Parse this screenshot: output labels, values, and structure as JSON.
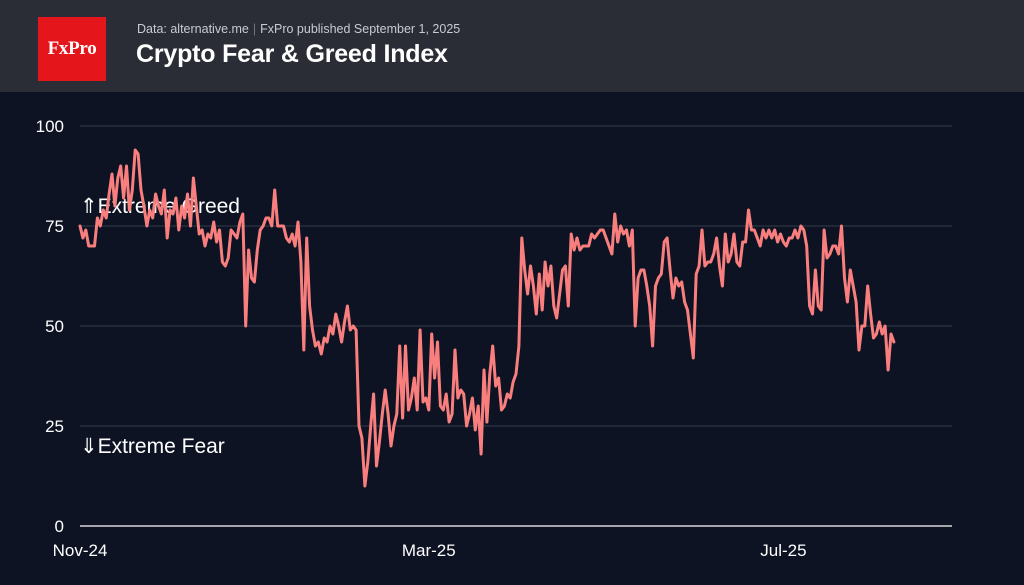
{
  "header": {
    "logo_text": "FxPro",
    "source": "Data: alternative.me",
    "separator": "|",
    "published": "FxPro published September 1, 2025",
    "title": "Crypto Fear & Greed Index"
  },
  "colors": {
    "background": "#0d1322",
    "header_background": "#2a2d35",
    "logo": "#e4161c",
    "line": "#f97f7f",
    "grid": "#343b4c"
  },
  "chart_data": {
    "type": "line",
    "title": "Crypto Fear & Greed Index",
    "xlabel": "",
    "ylabel": "",
    "ylim": [
      0,
      100
    ],
    "xlim": [
      0,
      300
    ],
    "yticks": [
      0,
      25,
      50,
      75,
      100
    ],
    "ytick_labels": [
      "0",
      "25",
      "50",
      "75",
      "100"
    ],
    "xticks": [
      {
        "label": "Nov-24",
        "x": 0
      },
      {
        "label": "Mar-25",
        "x": 120
      },
      {
        "label": "Jul-25",
        "x": 242
      }
    ],
    "grid": true,
    "annotations": [
      {
        "text": "⇑Extreme Greed",
        "y": 80
      },
      {
        "text": "⇓Extreme Fear",
        "y": 20
      }
    ],
    "series": [
      {
        "name": "Fear & Greed Index",
        "points": [
          [
            0,
            75
          ],
          [
            1,
            72
          ],
          [
            2,
            74
          ],
          [
            3,
            70
          ],
          [
            4,
            70
          ],
          [
            5,
            70
          ],
          [
            6,
            77
          ],
          [
            7,
            75
          ],
          [
            8,
            79
          ],
          [
            9,
            77
          ],
          [
            10,
            83
          ],
          [
            11,
            88
          ],
          [
            12,
            80
          ],
          [
            13,
            87
          ],
          [
            14,
            90
          ],
          [
            15,
            82
          ],
          [
            16,
            90
          ],
          [
            17,
            79
          ],
          [
            18,
            84
          ],
          [
            19,
            94
          ],
          [
            20,
            93
          ],
          [
            21,
            84
          ],
          [
            22,
            80
          ],
          [
            23,
            75
          ],
          [
            24,
            79
          ],
          [
            25,
            77
          ],
          [
            26,
            83
          ],
          [
            27,
            80
          ],
          [
            28,
            78
          ],
          [
            29,
            84
          ],
          [
            30,
            72
          ],
          [
            31,
            79
          ],
          [
            32,
            78
          ],
          [
            33,
            82
          ],
          [
            34,
            74
          ],
          [
            35,
            80
          ],
          [
            36,
            77
          ],
          [
            37,
            83
          ],
          [
            38,
            75
          ],
          [
            39,
            87
          ],
          [
            40,
            80
          ],
          [
            41,
            73
          ],
          [
            42,
            74
          ],
          [
            43,
            70
          ],
          [
            44,
            73
          ],
          [
            45,
            72
          ],
          [
            46,
            76
          ],
          [
            47,
            71
          ],
          [
            48,
            74
          ],
          [
            49,
            66
          ],
          [
            50,
            65
          ],
          [
            51,
            67
          ],
          [
            52,
            74
          ],
          [
            53,
            73
          ],
          [
            54,
            72
          ],
          [
            55,
            76
          ],
          [
            56,
            78
          ],
          [
            57,
            50
          ],
          [
            58,
            69
          ],
          [
            59,
            62
          ],
          [
            60,
            61
          ],
          [
            61,
            69
          ],
          [
            62,
            74
          ],
          [
            63,
            75
          ],
          [
            64,
            77
          ],
          [
            65,
            77
          ],
          [
            66,
            75
          ],
          [
            67,
            84
          ],
          [
            68,
            75
          ],
          [
            69,
            75
          ],
          [
            70,
            75
          ],
          [
            71,
            72
          ],
          [
            72,
            71
          ],
          [
            73,
            73
          ],
          [
            74,
            70
          ],
          [
            75,
            76
          ],
          [
            76,
            66
          ],
          [
            77,
            44
          ],
          [
            78,
            72
          ],
          [
            79,
            55
          ],
          [
            80,
            49
          ],
          [
            81,
            45
          ],
          [
            82,
            46
          ],
          [
            83,
            43
          ],
          [
            84,
            47
          ],
          [
            85,
            46
          ],
          [
            86,
            50
          ],
          [
            87,
            48
          ],
          [
            88,
            53
          ],
          [
            89,
            50
          ],
          [
            90,
            46
          ],
          [
            91,
            51
          ],
          [
            92,
            55
          ],
          [
            93,
            49
          ],
          [
            94,
            50
          ],
          [
            95,
            49
          ],
          [
            96,
            25
          ],
          [
            97,
            22
          ],
          [
            98,
            10
          ],
          [
            99,
            16
          ],
          [
            100,
            25
          ],
          [
            101,
            33
          ],
          [
            102,
            15
          ],
          [
            103,
            21
          ],
          [
            104,
            28
          ],
          [
            105,
            34
          ],
          [
            106,
            28
          ],
          [
            107,
            20
          ],
          [
            108,
            25
          ],
          [
            109,
            28
          ],
          [
            110,
            45
          ],
          [
            111,
            27
          ],
          [
            112,
            45
          ],
          [
            113,
            29
          ],
          [
            114,
            32
          ],
          [
            115,
            37
          ],
          [
            116,
            29
          ],
          [
            117,
            49
          ],
          [
            118,
            31
          ],
          [
            119,
            32
          ],
          [
            120,
            29
          ],
          [
            121,
            48
          ],
          [
            122,
            37
          ],
          [
            123,
            46
          ],
          [
            124,
            30
          ],
          [
            125,
            29
          ],
          [
            126,
            33
          ],
          [
            127,
            26
          ],
          [
            128,
            28
          ],
          [
            129,
            44
          ],
          [
            130,
            32
          ],
          [
            131,
            34
          ],
          [
            132,
            33
          ],
          [
            133,
            25
          ],
          [
            134,
            28
          ],
          [
            135,
            32
          ],
          [
            136,
            24
          ],
          [
            137,
            30
          ],
          [
            138,
            18
          ],
          [
            139,
            39
          ],
          [
            140,
            26
          ],
          [
            141,
            38
          ],
          [
            142,
            45
          ],
          [
            143,
            35
          ],
          [
            144,
            37
          ],
          [
            145,
            29
          ],
          [
            146,
            30
          ],
          [
            147,
            33
          ],
          [
            148,
            32
          ],
          [
            149,
            36
          ],
          [
            150,
            38
          ],
          [
            151,
            45
          ],
          [
            152,
            72
          ],
          [
            153,
            64
          ],
          [
            154,
            58
          ],
          [
            155,
            65
          ],
          [
            156,
            60
          ],
          [
            157,
            53
          ],
          [
            158,
            63
          ],
          [
            159,
            54
          ],
          [
            160,
            66
          ],
          [
            161,
            60
          ],
          [
            162,
            65
          ],
          [
            163,
            55
          ],
          [
            164,
            52
          ],
          [
            165,
            58
          ],
          [
            166,
            64
          ],
          [
            167,
            65
          ],
          [
            168,
            55
          ],
          [
            169,
            73
          ],
          [
            170,
            69
          ],
          [
            171,
            72
          ],
          [
            172,
            69
          ],
          [
            173,
            70
          ],
          [
            174,
            70
          ],
          [
            175,
            70
          ],
          [
            176,
            73
          ],
          [
            177,
            72
          ],
          [
            178,
            73
          ],
          [
            179,
            74
          ],
          [
            180,
            74
          ],
          [
            181,
            72
          ],
          [
            182,
            70
          ],
          [
            183,
            68
          ],
          [
            184,
            78
          ],
          [
            185,
            71
          ],
          [
            186,
            75
          ],
          [
            187,
            73
          ],
          [
            188,
            74
          ],
          [
            189,
            70
          ],
          [
            190,
            74
          ],
          [
            191,
            50
          ],
          [
            192,
            62
          ],
          [
            193,
            64
          ],
          [
            194,
            64
          ],
          [
            195,
            60
          ],
          [
            196,
            55
          ],
          [
            197,
            45
          ],
          [
            198,
            60
          ],
          [
            199,
            62
          ],
          [
            200,
            63
          ],
          [
            201,
            71
          ],
          [
            202,
            72
          ],
          [
            203,
            64
          ],
          [
            204,
            57
          ],
          [
            205,
            62
          ],
          [
            206,
            60
          ],
          [
            207,
            61
          ],
          [
            208,
            56
          ],
          [
            209,
            54
          ],
          [
            210,
            48
          ],
          [
            211,
            42
          ],
          [
            212,
            63
          ],
          [
            213,
            65
          ],
          [
            214,
            74
          ],
          [
            215,
            65
          ],
          [
            216,
            66
          ],
          [
            217,
            66
          ],
          [
            218,
            68
          ],
          [
            219,
            72
          ],
          [
            220,
            65
          ],
          [
            221,
            60
          ],
          [
            222,
            73
          ],
          [
            223,
            66
          ],
          [
            224,
            68
          ],
          [
            225,
            73
          ],
          [
            226,
            66
          ],
          [
            227,
            65
          ],
          [
            228,
            71
          ],
          [
            229,
            71
          ],
          [
            230,
            79
          ],
          [
            231,
            74
          ],
          [
            232,
            74
          ],
          [
            233,
            72
          ],
          [
            234,
            70
          ],
          [
            235,
            74
          ],
          [
            236,
            72
          ],
          [
            237,
            74
          ],
          [
            238,
            72
          ],
          [
            239,
            74
          ],
          [
            240,
            71
          ],
          [
            241,
            73
          ],
          [
            242,
            71
          ],
          [
            243,
            70
          ],
          [
            244,
            72
          ],
          [
            245,
            72
          ],
          [
            246,
            74
          ],
          [
            247,
            72
          ],
          [
            248,
            75
          ],
          [
            249,
            74
          ],
          [
            250,
            70
          ],
          [
            251,
            55
          ],
          [
            252,
            53
          ],
          [
            253,
            64
          ],
          [
            254,
            55
          ],
          [
            255,
            54
          ],
          [
            256,
            74
          ],
          [
            257,
            67
          ],
          [
            258,
            68
          ],
          [
            259,
            70
          ],
          [
            260,
            70
          ],
          [
            261,
            68
          ],
          [
            262,
            75
          ],
          [
            263,
            62
          ],
          [
            264,
            56
          ],
          [
            265,
            64
          ],
          [
            266,
            60
          ],
          [
            267,
            56
          ],
          [
            268,
            44
          ],
          [
            269,
            50
          ],
          [
            270,
            50
          ],
          [
            271,
            60
          ],
          [
            272,
            53
          ],
          [
            273,
            47
          ],
          [
            274,
            48
          ],
          [
            275,
            51
          ],
          [
            276,
            48
          ],
          [
            277,
            50
          ],
          [
            278,
            39
          ],
          [
            279,
            48
          ],
          [
            280,
            46
          ]
        ]
      }
    ]
  }
}
